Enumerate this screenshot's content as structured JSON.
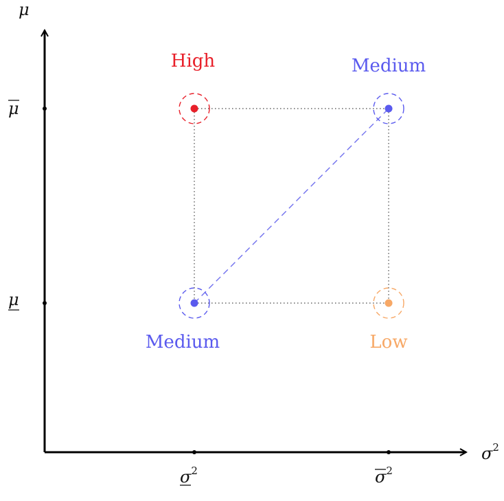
{
  "axes": {
    "x_label": "σ",
    "x_label_sup": "2",
    "y_label": "μ"
  },
  "ticks": {
    "y_upper": "μ",
    "y_lower": "μ",
    "x_lower": "σ",
    "x_lower_sup": "2",
    "x_upper": "σ",
    "x_upper_sup": "2"
  },
  "points": {
    "top_left": {
      "label": "High",
      "color": "#e8202a"
    },
    "top_right": {
      "label": "Medium",
      "color": "#5a5aee"
    },
    "bottom_left": {
      "label": "Medium",
      "color": "#5a5aee"
    },
    "bottom_right": {
      "label": "Low",
      "color": "#f7a866"
    }
  },
  "colors": {
    "axis": "#000000",
    "guide": "#444444",
    "diagonal": "#7070ee"
  }
}
